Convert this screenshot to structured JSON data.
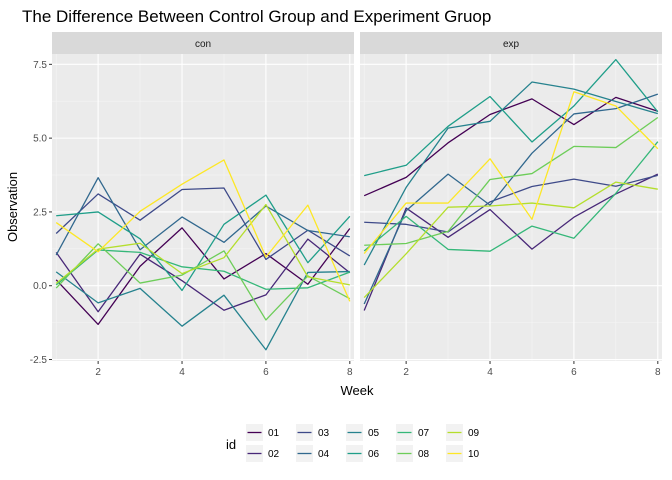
{
  "chart_data": {
    "type": "line",
    "title": "The Difference Between Control Group and Experiment Gruop",
    "xlabel": "Week",
    "ylabel": "Observation",
    "xlim": [
      0.9,
      8.1
    ],
    "ylim": [
      -2.55,
      7.85
    ],
    "x_ticks": [
      2,
      4,
      6,
      8
    ],
    "x_tick_labels": [
      "2",
      "4",
      "6",
      "8"
    ],
    "y_ticks": [
      -2.5,
      0,
      2.5,
      5,
      7.5
    ],
    "y_tick_labels": [
      "-2.5",
      "0.0",
      "2.5",
      "5.0",
      "7.5"
    ],
    "grid": true,
    "legend": {
      "title": "id",
      "placement": "bottom"
    },
    "x": [
      1,
      2,
      3,
      4,
      5,
      6,
      7,
      8
    ],
    "series_styles": [
      {
        "id": "01",
        "color": "#440154"
      },
      {
        "id": "02",
        "color": "#482878"
      },
      {
        "id": "03",
        "color": "#3E4A89"
      },
      {
        "id": "04",
        "color": "#31688E"
      },
      {
        "id": "05",
        "color": "#26828E"
      },
      {
        "id": "06",
        "color": "#1F9E89"
      },
      {
        "id": "07",
        "color": "#35B779"
      },
      {
        "id": "08",
        "color": "#6DCD59"
      },
      {
        "id": "09",
        "color": "#B4DE2C"
      },
      {
        "id": "10",
        "color": "#FDE725"
      }
    ],
    "panels": [
      {
        "label": "con",
        "series": [
          {
            "id": "01",
            "values": [
              0.2,
              -1.31,
              0.66,
              1.96,
              0.23,
              1.09,
              0.05,
              1.94
            ]
          },
          {
            "id": "02",
            "values": [
              1.13,
              -0.88,
              1.07,
              0.17,
              -0.83,
              -0.31,
              1.58,
              0.44
            ]
          },
          {
            "id": "03",
            "values": [
              1.77,
              3.11,
              2.22,
              3.26,
              3.31,
              0.89,
              1.88,
              1.01
            ]
          },
          {
            "id": "04",
            "values": [
              1.04,
              3.66,
              1.22,
              2.33,
              1.47,
              2.7,
              1.87,
              1.66
            ]
          },
          {
            "id": "05",
            "values": [
              0.47,
              -0.58,
              -0.09,
              -1.37,
              -0.32,
              -2.17,
              0.45,
              0.48
            ]
          },
          {
            "id": "06",
            "values": [
              2.37,
              2.5,
              1.59,
              -0.16,
              2.08,
              3.07,
              0.78,
              2.35
            ]
          },
          {
            "id": "07",
            "values": [
              0.03,
              1.21,
              1.13,
              0.64,
              0.49,
              -0.12,
              -0.07,
              0.46
            ]
          },
          {
            "id": "08",
            "values": [
              -0.08,
              1.42,
              0.09,
              0.36,
              1.18,
              -1.16,
              0.33,
              -0.44
            ]
          },
          {
            "id": "09",
            "values": [
              0.08,
              1.24,
              1.44,
              0.41,
              0.95,
              2.75,
              0.3,
              0.03
            ]
          },
          {
            "id": "10",
            "values": [
              2.14,
              1.15,
              2.52,
              3.44,
              4.26,
              0.97,
              2.73,
              -0.53
            ]
          }
        ]
      },
      {
        "label": "exp",
        "series": [
          {
            "id": "01",
            "values": [
              3.05,
              3.67,
              4.84,
              5.8,
              6.33,
              5.46,
              6.38,
              5.91
            ]
          },
          {
            "id": "02",
            "values": [
              -0.84,
              2.63,
              1.64,
              2.58,
              1.24,
              2.32,
              3.11,
              3.78
            ]
          },
          {
            "id": "03",
            "values": [
              2.15,
              2.08,
              1.82,
              2.84,
              3.36,
              3.61,
              3.37,
              3.74
            ]
          },
          {
            "id": "04",
            "values": [
              -0.62,
              2.54,
              3.78,
              2.73,
              4.49,
              5.82,
              6.0,
              6.49
            ]
          },
          {
            "id": "05",
            "values": [
              0.7,
              3.33,
              5.34,
              5.57,
              6.9,
              6.66,
              6.24,
              5.83
            ]
          },
          {
            "id": "06",
            "values": [
              3.73,
              4.08,
              5.4,
              6.41,
              4.87,
              6.09,
              7.66,
              5.89
            ]
          },
          {
            "id": "07",
            "values": [
              1.18,
              2.35,
              1.23,
              1.17,
              2.02,
              1.61,
              3.13,
              4.88
            ]
          },
          {
            "id": "08",
            "values": [
              1.37,
              1.43,
              1.84,
              3.6,
              3.8,
              4.72,
              4.68,
              5.7
            ]
          },
          {
            "id": "09",
            "values": [
              -0.4,
              1.08,
              2.66,
              2.7,
              2.8,
              2.64,
              3.51,
              3.27
            ]
          },
          {
            "id": "10",
            "values": [
              1.09,
              2.8,
              2.8,
              4.3,
              2.25,
              6.57,
              6.09,
              4.64
            ]
          }
        ]
      }
    ]
  }
}
